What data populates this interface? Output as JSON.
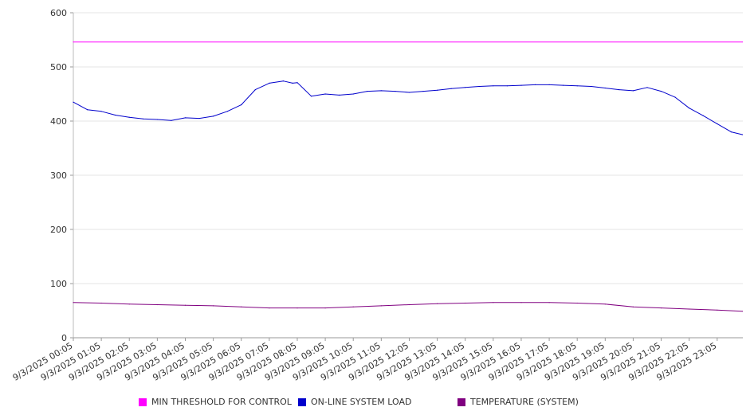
{
  "chart_data": {
    "type": "line",
    "title": "",
    "xlabel": "",
    "ylabel": "",
    "ylim": [
      0,
      600
    ],
    "y_ticks": [
      "0",
      "100",
      "200",
      "300",
      "400",
      "500",
      "600"
    ],
    "x_tick_labels": [
      "9/3/2025 00:05",
      "9/3/2025 01:05",
      "9/3/2025 02:05",
      "9/3/2025 03:05",
      "9/3/2025 04:05",
      "9/3/2025 05:05",
      "9/3/2025 06:05",
      "9/3/2025 07:05",
      "9/3/2025 08:05",
      "9/3/2025 09:05",
      "9/3/2025 10:05",
      "9/3/2025 11:05",
      "9/3/2025 12:05",
      "9/3/2025 13:05",
      "9/3/2025 14:05",
      "9/3/2025 15:05",
      "9/3/2025 16:05",
      "9/3/2025 17:05",
      "9/3/2025 18:05",
      "9/3/2025 19:05",
      "9/3/2025 20:05",
      "9/3/2025 21:05",
      "9/3/2025 22:05",
      "9/3/2025 23:05"
    ],
    "grid": true,
    "legend_position": "bottom",
    "series": [
      {
        "name": "MIN THRESHOLD FOR CONTROL",
        "color": "#ff00ff",
        "x": [
          "9/3/2025 00:05",
          "9/3/2025 23:59"
        ],
        "y": [
          546,
          546
        ]
      },
      {
        "name": "ON-LINE SYSTEM LOAD",
        "color": "#0000cc",
        "x": [
          "9/3/2025 00:05",
          "9/3/2025 00:35",
          "9/3/2025 01:05",
          "9/3/2025 01:35",
          "9/3/2025 02:05",
          "9/3/2025 02:35",
          "9/3/2025 03:05",
          "9/3/2025 03:35",
          "9/3/2025 04:05",
          "9/3/2025 04:35",
          "9/3/2025 05:05",
          "9/3/2025 05:35",
          "9/3/2025 06:05",
          "9/3/2025 06:35",
          "9/3/2025 07:05",
          "9/3/2025 07:35",
          "9/3/2025 07:55",
          "9/3/2025 08:05",
          "9/3/2025 08:35",
          "9/3/2025 09:05",
          "9/3/2025 09:35",
          "9/3/2025 10:05",
          "9/3/2025 10:35",
          "9/3/2025 11:05",
          "9/3/2025 11:35",
          "9/3/2025 12:05",
          "9/3/2025 12:35",
          "9/3/2025 13:05",
          "9/3/2025 13:35",
          "9/3/2025 14:05",
          "9/3/2025 14:35",
          "9/3/2025 15:05",
          "9/3/2025 15:35",
          "9/3/2025 16:05",
          "9/3/2025 16:35",
          "9/3/2025 17:05",
          "9/3/2025 17:35",
          "9/3/2025 18:05",
          "9/3/2025 18:35",
          "9/3/2025 19:05",
          "9/3/2025 19:35",
          "9/3/2025 20:05",
          "9/3/2025 20:35",
          "9/3/2025 21:05",
          "9/3/2025 21:35",
          "9/3/2025 22:05",
          "9/3/2025 22:35",
          "9/3/2025 23:05",
          "9/3/2025 23:35",
          "9/3/2025 23:59"
        ],
        "y": [
          435,
          421,
          418,
          411,
          407,
          404,
          403,
          401,
          406,
          405,
          409,
          418,
          430,
          458,
          470,
          474,
          470,
          471,
          446,
          450,
          448,
          450,
          455,
          456,
          455,
          453,
          455,
          457,
          460,
          462,
          464,
          465,
          465,
          466,
          467,
          467,
          466,
          465,
          464,
          461,
          458,
          456,
          462,
          455,
          444,
          424,
          410,
          395,
          380,
          375
        ]
      },
      {
        "name": "TEMPERATURE (SYSTEM)",
        "color": "#800080",
        "x": [
          "9/3/2025 00:05",
          "9/3/2025 01:05",
          "9/3/2025 02:05",
          "9/3/2025 03:05",
          "9/3/2025 04:05",
          "9/3/2025 05:05",
          "9/3/2025 06:05",
          "9/3/2025 07:05",
          "9/3/2025 08:05",
          "9/3/2025 09:05",
          "9/3/2025 10:05",
          "9/3/2025 11:05",
          "9/3/2025 12:05",
          "9/3/2025 13:05",
          "9/3/2025 14:05",
          "9/3/2025 15:05",
          "9/3/2025 16:05",
          "9/3/2025 17:05",
          "9/3/2025 18:05",
          "9/3/2025 19:05",
          "9/3/2025 20:05",
          "9/3/2025 21:05",
          "9/3/2025 22:05",
          "9/3/2025 23:05",
          "9/3/2025 23:59"
        ],
        "y": [
          65,
          64,
          62,
          61,
          60,
          59,
          57,
          55,
          55,
          55,
          57,
          59,
          61,
          63,
          64,
          65,
          65,
          65,
          64,
          62,
          57,
          55,
          53,
          51,
          49
        ]
      }
    ]
  }
}
